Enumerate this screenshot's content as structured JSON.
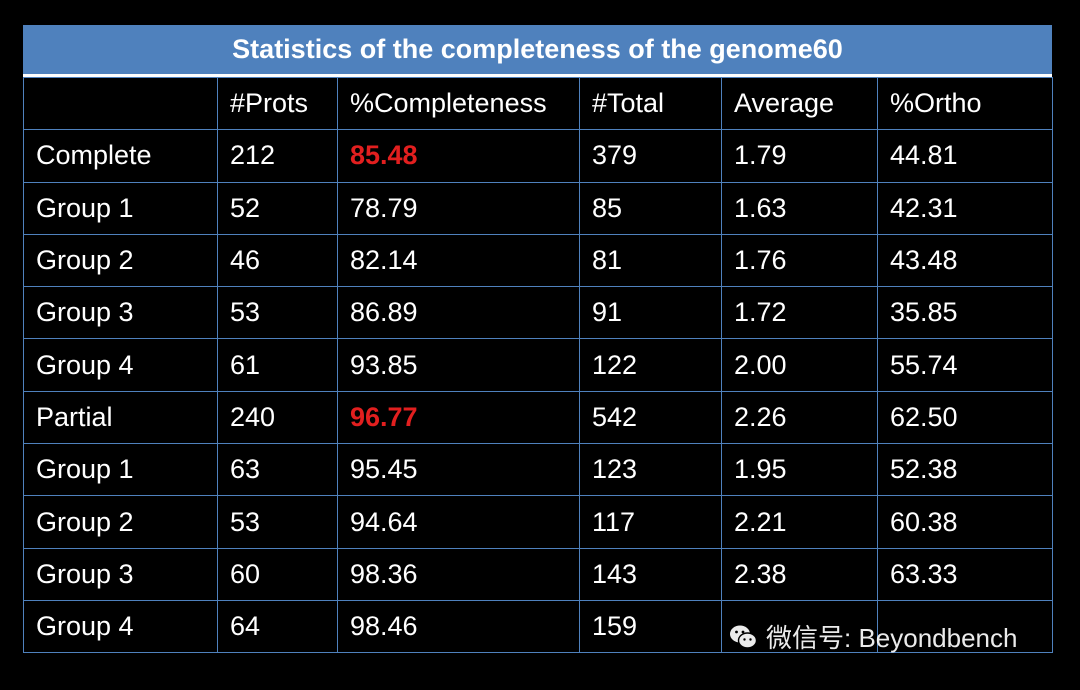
{
  "title": "Statistics of the completeness of the genome60",
  "headers": [
    "",
    "#Prots",
    "%Completeness",
    "#Total",
    "Average",
    "%Ortho"
  ],
  "rows": [
    {
      "cells": [
        "Complete",
        "212",
        "85.48",
        "379",
        "1.79",
        "44.81"
      ],
      "highlight": 2
    },
    {
      "cells": [
        "Group 1",
        "52",
        "78.79",
        "85",
        "1.63",
        "42.31"
      ]
    },
    {
      "cells": [
        "Group 2",
        "46",
        "82.14",
        "81",
        "1.76",
        "43.48"
      ]
    },
    {
      "cells": [
        "Group 3",
        "53",
        "86.89",
        "91",
        "1.72",
        "35.85"
      ]
    },
    {
      "cells": [
        "Group 4",
        "61",
        "93.85",
        "122",
        "2.00",
        "55.74"
      ]
    },
    {
      "cells": [
        "Partial",
        "240",
        "96.77",
        "542",
        "2.26",
        "62.50"
      ],
      "highlight": 2
    },
    {
      "cells": [
        "Group 1",
        "63",
        "95.45",
        "123",
        "1.95",
        "52.38"
      ]
    },
    {
      "cells": [
        "Group 2",
        "53",
        "94.64",
        "117",
        "2.21",
        "60.38"
      ]
    },
    {
      "cells": [
        "Group 3",
        "60",
        "98.36",
        "143",
        "2.38",
        "63.33"
      ]
    },
    {
      "cells": [
        "Group 4",
        "64",
        "98.46",
        "159",
        "",
        ""
      ]
    }
  ],
  "highlight_color": "#e21f1f",
  "accent_color": "#4f81bd",
  "watermark": {
    "icon": "wechat-icon",
    "text": "微信号: Beyondbench"
  }
}
